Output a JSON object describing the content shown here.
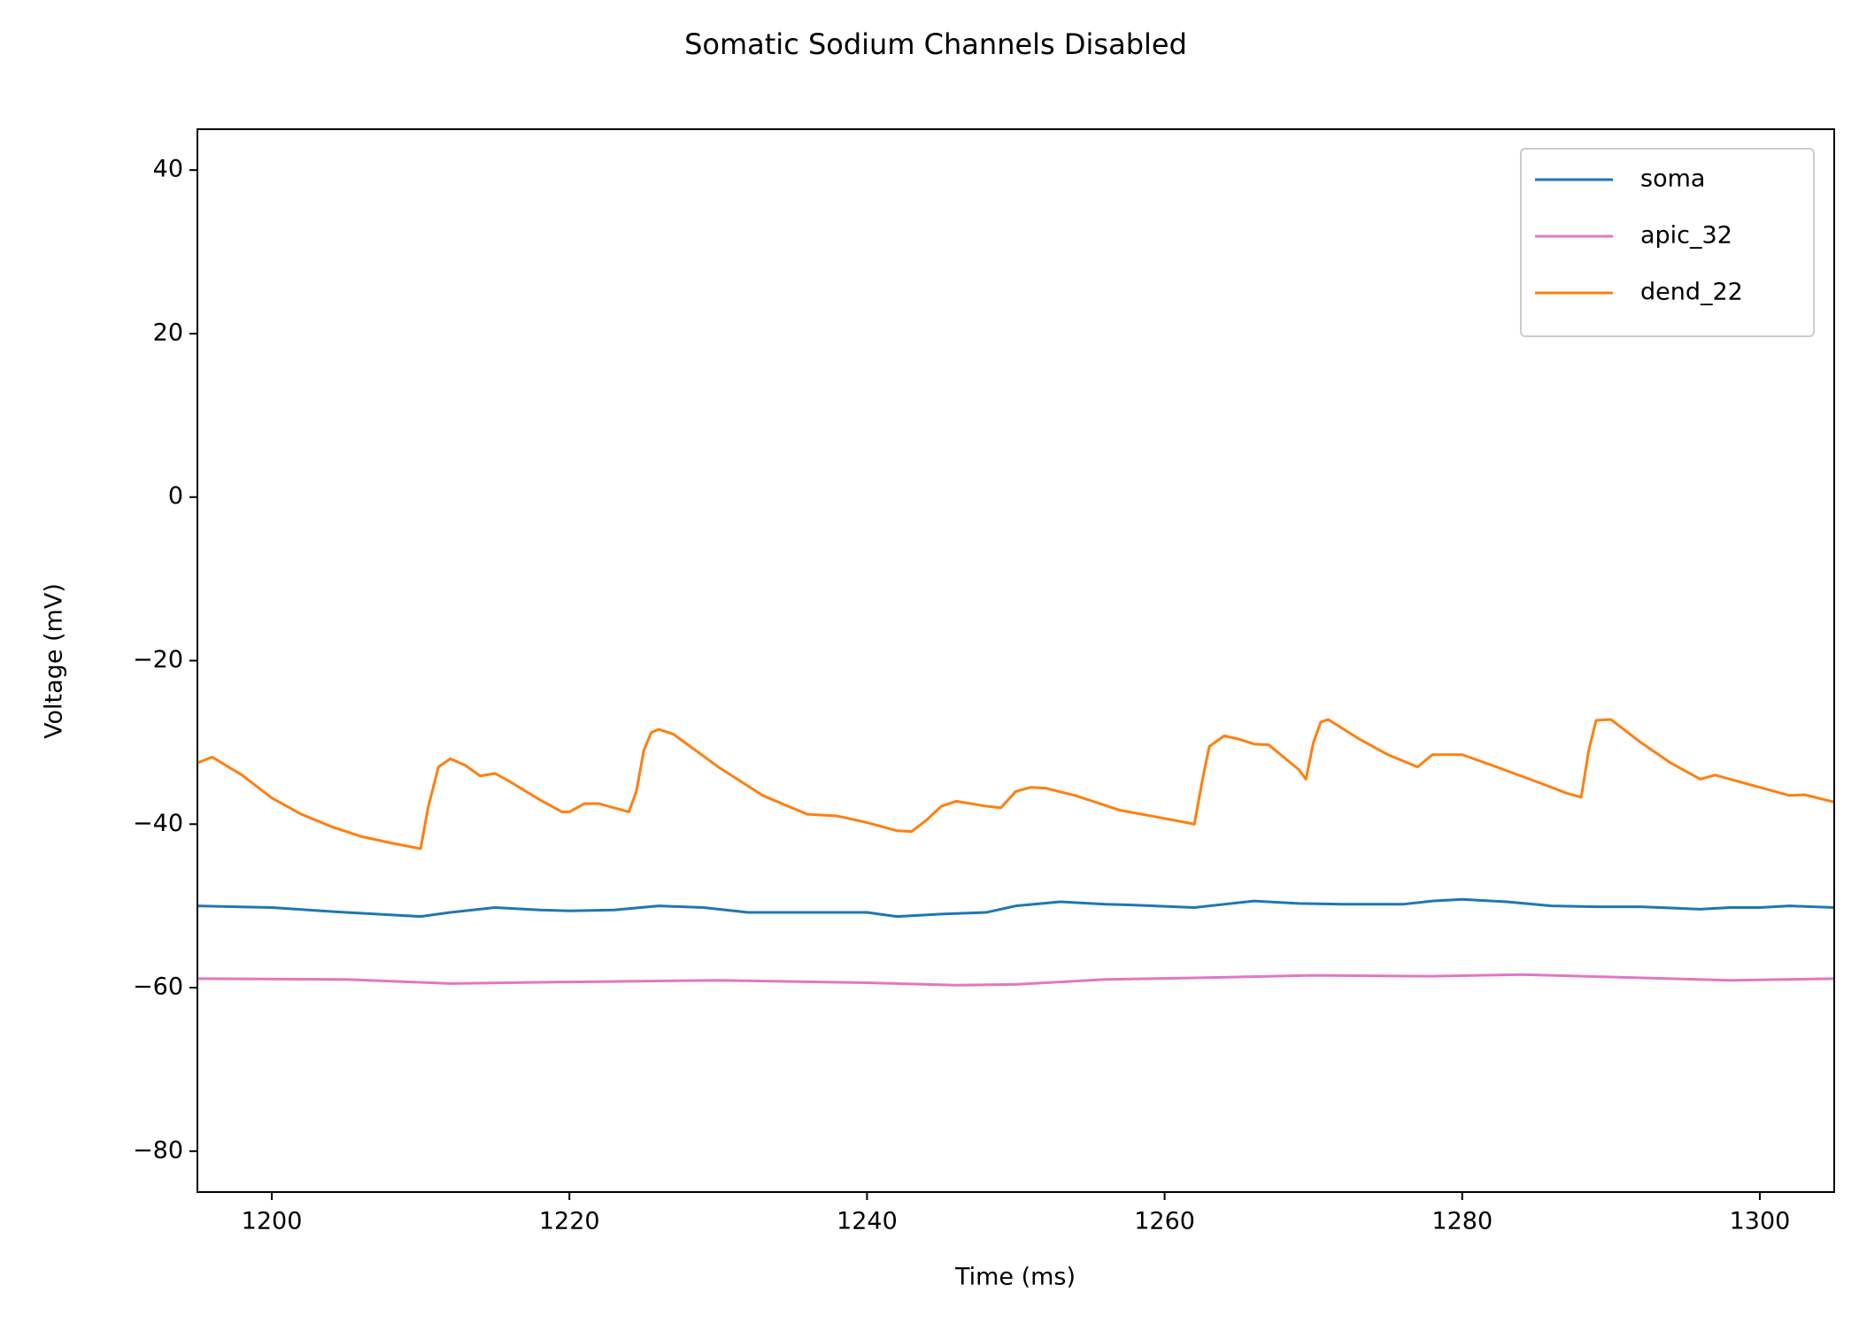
{
  "chart_data": {
    "type": "line",
    "title": "Somatic Sodium Channels Disabled",
    "x_label": "Time (ms)",
    "y_label": "Voltage (mV)",
    "xlim": [
      1195,
      1305
    ],
    "ylim": [
      -85,
      45
    ],
    "xticks": [
      1200,
      1220,
      1240,
      1260,
      1280,
      1300
    ],
    "yticks": [
      {
        "value": -80,
        "label": "−80"
      },
      {
        "value": -60,
        "label": "−60"
      },
      {
        "value": -40,
        "label": "−40"
      },
      {
        "value": -20,
        "label": "−20"
      },
      0,
      20,
      40
    ],
    "legend": "upper right",
    "grid": false,
    "series": [
      {
        "name": "soma",
        "color": "#1f77b4",
        "x": [
          1195,
          1200,
          1205,
          1210,
          1212,
          1215,
          1218,
          1220,
          1223,
          1226,
          1229,
          1232,
          1236,
          1240,
          1242,
          1245,
          1248,
          1250,
          1253,
          1256,
          1258,
          1262,
          1264,
          1266,
          1269,
          1272,
          1276,
          1278,
          1280,
          1283,
          1286,
          1289,
          1292,
          1296,
          1298,
          1300,
          1302,
          1305
        ],
        "values": [
          -50,
          -50.2,
          -50.8,
          -51.3,
          -50.8,
          -50.2,
          -50.5,
          -50.6,
          -50.5,
          -50,
          -50.2,
          -50.8,
          -50.8,
          -50.8,
          -51.3,
          -51,
          -50.8,
          -50,
          -49.5,
          -49.8,
          -49.9,
          -50.2,
          -49.8,
          -49.4,
          -49.7,
          -49.8,
          -49.8,
          -49.4,
          -49.2,
          -49.5,
          -50,
          -50.1,
          -50.1,
          -50.4,
          -50.2,
          -50.2,
          -50,
          -50.2
        ]
      },
      {
        "name": "apic_32",
        "color": "#e377c2",
        "x": [
          1195,
          1205,
          1212,
          1220,
          1230,
          1240,
          1246,
          1250,
          1256,
          1262,
          1270,
          1278,
          1284,
          1290,
          1298,
          1305
        ],
        "values": [
          -58.9,
          -59,
          -59.5,
          -59.3,
          -59.1,
          -59.4,
          -59.7,
          -59.6,
          -59,
          -58.8,
          -58.5,
          -58.6,
          -58.4,
          -58.7,
          -59.1,
          -58.9
        ]
      },
      {
        "name": "dend_22",
        "color": "#ff7f0e",
        "x": [
          1195,
          1196,
          1198,
          1200,
          1202,
          1204,
          1206,
          1208,
          1210,
          1210.5,
          1211.2,
          1212,
          1213,
          1214,
          1215,
          1216,
          1218,
          1219.5,
          1220,
          1221,
          1222,
          1224,
          1224.5,
          1225,
          1225.5,
          1226,
          1227,
          1230,
          1233,
          1236,
          1238,
          1240,
          1242,
          1243,
          1244,
          1245,
          1246,
          1248,
          1249,
          1250,
          1251,
          1252,
          1254,
          1257,
          1260,
          1262,
          1262.5,
          1263,
          1264,
          1265,
          1266,
          1267,
          1269,
          1269.5,
          1270,
          1270.5,
          1271,
          1273,
          1275,
          1277,
          1278,
          1279,
          1280,
          1282,
          1285,
          1287,
          1288,
          1288.5,
          1289,
          1290,
          1292,
          1294,
          1296,
          1297,
          1300,
          1302,
          1303,
          1305
        ],
        "values": [
          -32.5,
          -31.8,
          -34,
          -36.8,
          -38.8,
          -40.3,
          -41.5,
          -42.3,
          -43,
          -38,
          -33,
          -32,
          -32.8,
          -34.1,
          -33.8,
          -34.8,
          -37,
          -38.5,
          -38.5,
          -37.5,
          -37.5,
          -38.5,
          -36,
          -31,
          -28.8,
          -28.4,
          -29,
          -33,
          -36.5,
          -38.8,
          -39,
          -39.8,
          -40.8,
          -40.9,
          -39.5,
          -37.8,
          -37.2,
          -37.8,
          -38,
          -36,
          -35.5,
          -35.6,
          -36.5,
          -38.3,
          -39.3,
          -40,
          -35,
          -30.5,
          -29.2,
          -29.6,
          -30.2,
          -30.3,
          -33.3,
          -34.5,
          -30,
          -27.5,
          -27.2,
          -29.5,
          -31.5,
          -33,
          -31.5,
          -31.5,
          -31.5,
          -32.8,
          -34.8,
          -36.2,
          -36.7,
          -31,
          -27.3,
          -27.2,
          -30,
          -32.5,
          -34.5,
          -34,
          -35.5,
          -36.5,
          -36.4,
          -37.3
        ]
      }
    ]
  }
}
